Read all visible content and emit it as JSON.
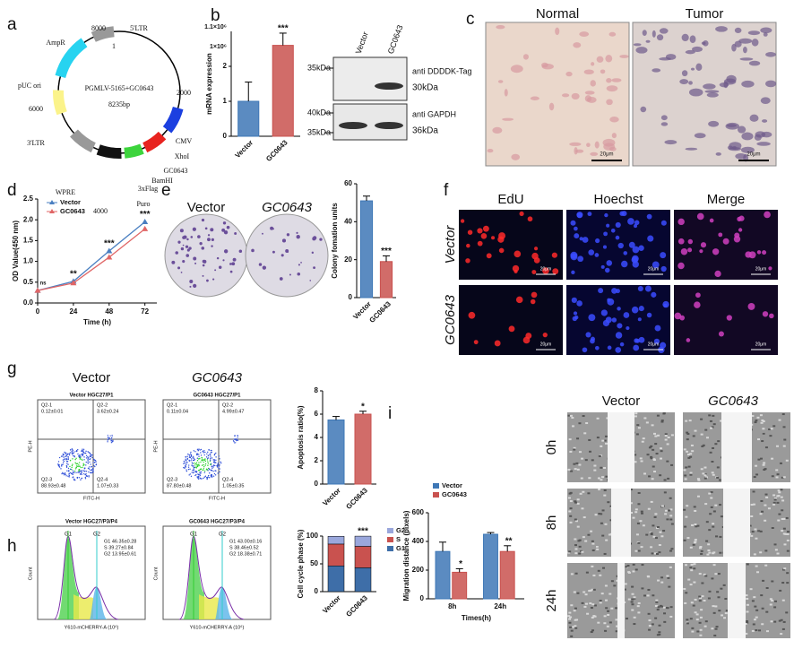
{
  "panel_labels": [
    "a",
    "b",
    "c",
    "d",
    "e",
    "f",
    "g",
    "h",
    "i"
  ],
  "plasmid": {
    "name": "PGMLV-5165+GC0643",
    "size": "8235bp",
    "labels": [
      "8000",
      "5'LTR",
      "1",
      "AmpR",
      "2000",
      "pUC ori",
      "6000",
      "CMV",
      "XhoI",
      "GC0643",
      "BamHI",
      "3xFlag",
      "Puro",
      "4000",
      "WPRE",
      "3'LTR"
    ]
  },
  "western": {
    "lanes": [
      "Vector",
      "GC0643"
    ],
    "markers": [
      "35kDa",
      "40kDa",
      "35kDa"
    ],
    "antibodies": [
      "anti DDDDK-Tag",
      "anti GAPDH"
    ],
    "band_sizes": [
      "30kDa",
      "36kDa"
    ]
  },
  "ihc": {
    "columns": [
      "Normal",
      "Tumor"
    ],
    "scale_bar": "20μm"
  },
  "colony": {
    "columns": [
      "Vector",
      "GC0643"
    ]
  },
  "edu": {
    "columns": [
      "EdU",
      "Hoechst",
      "Merge"
    ],
    "rows": [
      "Vector",
      "GC0643"
    ],
    "scale_bar": "20μm"
  },
  "apoptosis_flow": {
    "columns": [
      "Vector",
      "GC0643"
    ],
    "x_label": "FITC-H",
    "y_label": "PE-H",
    "plots": [
      {
        "title": "Vector HGC27/P1",
        "quadrants": [
          [
            "Q2-1",
            "0.12±0.01"
          ],
          [
            "Q2-2",
            "3.62±0.24"
          ],
          [
            "Q2-3",
            "88.93±0.48"
          ],
          [
            "Q2-4",
            "1.07±0.33"
          ]
        ]
      },
      {
        "title": "GC0643 HGC27/P1",
        "quadrants": [
          [
            "Q2-1",
            "0.11±0.04"
          ],
          [
            "Q2-2",
            "4.99±0.47"
          ],
          [
            "Q2-3",
            "87.80±0.48"
          ],
          [
            "Q2-4",
            "1.05±0.35"
          ]
        ]
      }
    ]
  },
  "cell_cycle_hist": {
    "x_label": "Y610-mCHERRY-A (10⁶)",
    "y_label": "Count",
    "peaks": [
      "G1",
      "G2"
    ],
    "plots": [
      {
        "title": "Vector HGC27/P3/P4",
        "stats": [
          "G1 46.35±0.28",
          "S 39.27±0.84",
          "G2 13.95±0.61"
        ]
      },
      {
        "title": "GC0643 HGC27/P3/P4",
        "stats": [
          "G1 43.00±0.16",
          "S 38.46±0.52",
          "G2 18.38±0.71"
        ]
      }
    ]
  },
  "scratch": {
    "columns": [
      "Vector",
      "GC0643"
    ],
    "rows": [
      "0h",
      "8h",
      "24h"
    ]
  },
  "chart_data": [
    {
      "type": "bar",
      "y_label": "mRNA expression",
      "categories": [
        "Vector",
        "GC0643"
      ],
      "values": [
        1.0,
        2.6
      ],
      "errors": [
        0.55,
        0.35
      ],
      "colors": [
        "#3e77b6",
        "#c9524f"
      ],
      "ylim": [
        0,
        3
      ],
      "yticks": [
        0,
        1,
        2
      ],
      "axis_break_labels": [
        "1.1×10⁶",
        "1×10⁶"
      ],
      "annotations": [
        null,
        "***"
      ]
    },
    {
      "type": "line",
      "x_label": "Time (h)",
      "y_label": "OD Value(450 nm)",
      "x": [
        0,
        24,
        48,
        72
      ],
      "series": [
        {
          "name": "Vector",
          "color": "#4a7fc1",
          "values": [
            0.3,
            0.52,
            1.25,
            1.95
          ]
        },
        {
          "name": "GC0643",
          "color": "#e06666",
          "values": [
            0.3,
            0.48,
            1.1,
            1.78
          ]
        }
      ],
      "xlim": [
        0,
        80
      ],
      "xticks": [
        0,
        24,
        48,
        72
      ],
      "ylim": [
        0,
        2.5
      ],
      "yticks": [
        {
          "value": 0,
          "label": "0.0"
        },
        {
          "value": 0.5,
          "label": "0.5"
        },
        {
          "value": 1,
          "label": "1.0"
        },
        {
          "value": 1.5,
          "label": "1.5"
        },
        {
          "value": 2,
          "label": "2.0"
        },
        {
          "value": 2.5,
          "label": "2.5"
        }
      ],
      "annotations": [
        "ns",
        "**",
        "***",
        "***"
      ],
      "legend": "upper left"
    },
    {
      "type": "bar",
      "y_label": "Colony fomation units",
      "categories": [
        "Vector",
        "GC0643"
      ],
      "values": [
        51,
        19
      ],
      "errors": [
        2.5,
        3
      ],
      "colors": [
        "#3e77b6",
        "#c9524f"
      ],
      "ylim": [
        0,
        60
      ],
      "yticks": [
        0,
        20,
        40,
        60
      ],
      "annotations": [
        null,
        "***"
      ]
    },
    {
      "type": "bar",
      "y_label": "Apoptosis ratio(%)",
      "categories": [
        "Vector",
        "GC0643"
      ],
      "values": [
        5.5,
        6.0
      ],
      "errors": [
        0.3,
        0.25
      ],
      "colors": [
        "#3e77b6",
        "#c9524f"
      ],
      "ylim": [
        0,
        8
      ],
      "yticks": [
        0,
        2,
        4,
        6,
        8
      ],
      "annotations": [
        null,
        "*"
      ]
    },
    {
      "type": "bar",
      "stacked": true,
      "y_label": "Cell cycle phase (%)",
      "categories": [
        "Vector",
        "GC0643"
      ],
      "series": [
        {
          "name": "G1",
          "color": "#3e6ea8",
          "values": [
            46.35,
            43.0
          ]
        },
        {
          "name": "S",
          "color": "#c9524f",
          "values": [
            39.27,
            38.46
          ]
        },
        {
          "name": "G2",
          "color": "#9aa7dc",
          "values": [
            13.95,
            18.38
          ]
        }
      ],
      "ylim": [
        0,
        100
      ],
      "yticks": [
        0,
        50,
        100
      ],
      "annotations": [
        null,
        "***"
      ],
      "legend": "right"
    },
    {
      "type": "bar",
      "x_label": "Times(h)",
      "y_label": "Migration distance (pixels)",
      "categories": [
        "8h",
        "24h"
      ],
      "series": [
        {
          "name": "Vector",
          "color": "#3e77b6",
          "values": [
            330,
            450
          ],
          "errors": [
            65,
            12
          ]
        },
        {
          "name": "GC0643",
          "color": "#c9524f",
          "values": [
            185,
            330
          ],
          "errors": [
            25,
            40
          ]
        }
      ],
      "ylim": [
        0,
        600
      ],
      "yticks": [
        0,
        200,
        400,
        600
      ],
      "annotations": [
        "*",
        "**"
      ],
      "legend": "upper left"
    }
  ]
}
